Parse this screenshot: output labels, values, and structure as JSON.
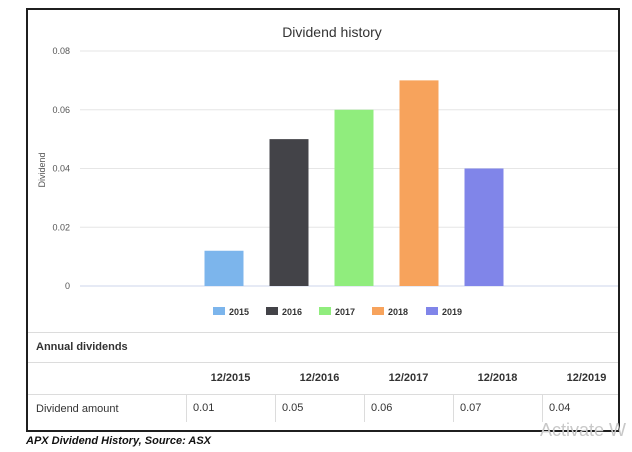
{
  "chart_data": {
    "type": "bar",
    "title": "Dividend history",
    "ylabel": "Dividend",
    "ylim": [
      0,
      0.08
    ],
    "yticks": [
      "0",
      "0.02",
      "0.04",
      "0.06",
      "0.08"
    ],
    "categories": [
      "2015",
      "2016",
      "2017",
      "2018",
      "2019"
    ],
    "values": [
      0.012,
      0.05,
      0.06,
      0.07,
      0.04
    ],
    "colors": [
      "#7cb5ec",
      "#434348",
      "#90ed7d",
      "#f7a35c",
      "#8085e9"
    ],
    "legend_position": "bottom",
    "grid": true
  },
  "table": {
    "title": "Annual dividends",
    "headers": [
      "12/2015",
      "12/2016",
      "12/2017",
      "12/2018",
      "12/2019"
    ],
    "row_label": "Dividend amount",
    "values": [
      "0.01",
      "0.05",
      "0.06",
      "0.07",
      "0.04"
    ]
  },
  "caption": "APX Dividend History, Source: ASX",
  "watermark": "Activate W"
}
